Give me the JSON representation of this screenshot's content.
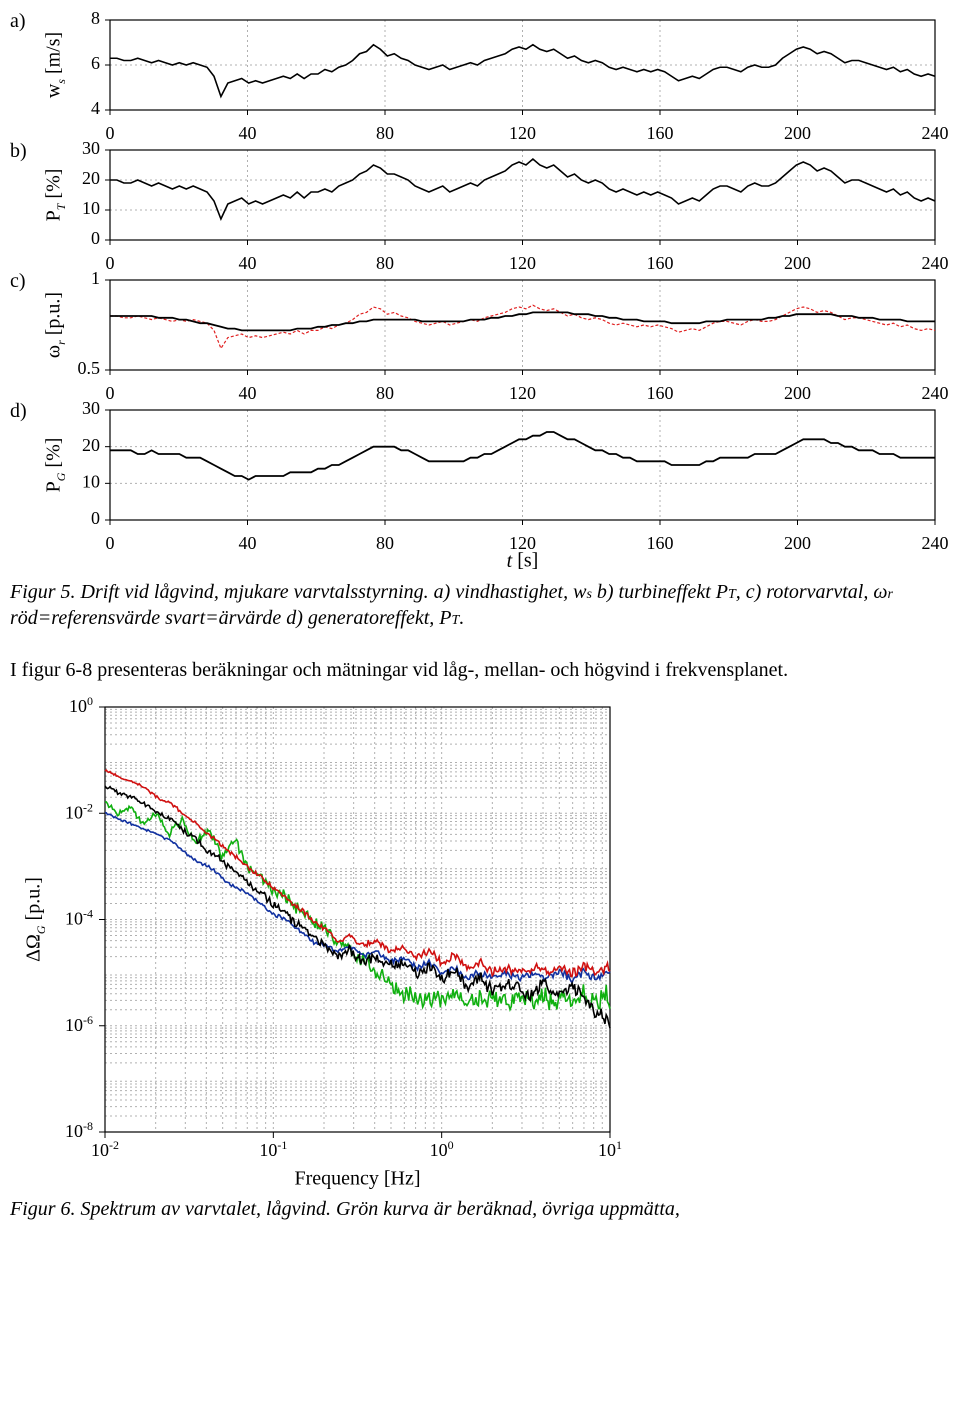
{
  "figure5": {
    "panels": [
      "a)",
      "b)",
      "c)",
      "d)"
    ],
    "x": {
      "label": "t [s]",
      "min": 0,
      "max": 240,
      "ticks": [
        0,
        40,
        80,
        120,
        160,
        200,
        240
      ],
      "fontsize": 18
    },
    "a": {
      "ylabel_html": "w<tspan font-style='italic' baseline-shift='sub' font-size='12'>s</tspan> [m/s]",
      "ymin": 4,
      "ymax": 8,
      "yticks": [
        4,
        6,
        8
      ],
      "line_color": "#000000",
      "line_width": 1.6,
      "grid_color": "#b0b0b0",
      "data": [
        6.3,
        6.3,
        6.2,
        6.2,
        6.3,
        6.2,
        6.1,
        6.2,
        6.1,
        6.0,
        6.1,
        6.0,
        6.1,
        6.0,
        5.9,
        5.5,
        4.6,
        5.2,
        5.3,
        5.4,
        5.2,
        5.3,
        5.2,
        5.3,
        5.4,
        5.5,
        5.4,
        5.6,
        5.4,
        5.6,
        5.6,
        5.8,
        5.7,
        5.9,
        6.0,
        6.2,
        6.5,
        6.6,
        6.9,
        6.7,
        6.4,
        6.5,
        6.3,
        6.2,
        6.0,
        5.9,
        5.8,
        5.9,
        6.0,
        5.8,
        5.9,
        6.0,
        6.1,
        6.0,
        6.2,
        6.3,
        6.4,
        6.5,
        6.7,
        6.8,
        6.7,
        6.9,
        6.7,
        6.6,
        6.7,
        6.5,
        6.3,
        6.4,
        6.2,
        6.1,
        6.2,
        6.1,
        5.9,
        5.8,
        5.9,
        5.8,
        5.7,
        5.8,
        5.7,
        5.8,
        5.7,
        5.5,
        5.3,
        5.4,
        5.5,
        5.4,
        5.6,
        5.8,
        5.9,
        5.9,
        5.8,
        5.7,
        5.9,
        6.0,
        5.9,
        5.9,
        6.0,
        6.3,
        6.5,
        6.7,
        6.8,
        6.7,
        6.5,
        6.6,
        6.5,
        6.3,
        6.1,
        6.2,
        6.2,
        6.1,
        6.0,
        5.9,
        5.8,
        5.9,
        5.7,
        5.8,
        5.6,
        5.5,
        5.6,
        5.5
      ]
    },
    "b": {
      "ylabel_html": "P<tspan font-style='italic' baseline-shift='sub' font-size='12'>T</tspan> [%]",
      "ymin": 0,
      "ymax": 30,
      "yticks": [
        0,
        10,
        20,
        30
      ],
      "line_color": "#000000",
      "line_width": 1.6,
      "grid_color": "#b0b0b0",
      "data": [
        20,
        20,
        19,
        19,
        20,
        19,
        18,
        19,
        18,
        17,
        18,
        17,
        18,
        17,
        16,
        13,
        7,
        12,
        13,
        14,
        12,
        13,
        12,
        13,
        14,
        15,
        14,
        16,
        14,
        16,
        16,
        17,
        16,
        18,
        19,
        20,
        22,
        23,
        25,
        24,
        22,
        22,
        21,
        20,
        18,
        17,
        16,
        17,
        18,
        16,
        17,
        18,
        19,
        18,
        20,
        21,
        22,
        23,
        25,
        26,
        25,
        27,
        25,
        24,
        25,
        23,
        21,
        22,
        20,
        19,
        20,
        19,
        17,
        16,
        17,
        16,
        15,
        16,
        15,
        16,
        15,
        14,
        12,
        13,
        14,
        13,
        15,
        17,
        18,
        18,
        17,
        16,
        18,
        19,
        18,
        18,
        19,
        21,
        23,
        25,
        26,
        25,
        23,
        24,
        23,
        21,
        19,
        20,
        20,
        19,
        18,
        17,
        16,
        17,
        15,
        16,
        14,
        13,
        14,
        13
      ]
    },
    "c": {
      "ylabel_html": "ω<tspan font-style='italic' baseline-shift='sub' font-size='12'>r</tspan> [p.u.]",
      "ymin": 0.5,
      "ymax": 1.0,
      "yticks": [
        0.5,
        1.0
      ],
      "ytick_labels": [
        "0.5",
        "1"
      ],
      "black": {
        "color": "#000000",
        "width": 1.8,
        "data": [
          0.8,
          0.8,
          0.8,
          0.8,
          0.8,
          0.8,
          0.8,
          0.79,
          0.79,
          0.79,
          0.78,
          0.78,
          0.77,
          0.76,
          0.76,
          0.75,
          0.74,
          0.73,
          0.73,
          0.72,
          0.72,
          0.72,
          0.72,
          0.72,
          0.72,
          0.72,
          0.72,
          0.73,
          0.73,
          0.73,
          0.74,
          0.74,
          0.75,
          0.75,
          0.76,
          0.76,
          0.77,
          0.77,
          0.78,
          0.78,
          0.78,
          0.78,
          0.78,
          0.78,
          0.78,
          0.77,
          0.77,
          0.77,
          0.77,
          0.77,
          0.77,
          0.77,
          0.78,
          0.78,
          0.78,
          0.79,
          0.79,
          0.8,
          0.8,
          0.81,
          0.81,
          0.82,
          0.82,
          0.82,
          0.82,
          0.82,
          0.82,
          0.81,
          0.81,
          0.81,
          0.8,
          0.8,
          0.79,
          0.79,
          0.78,
          0.78,
          0.78,
          0.77,
          0.77,
          0.77,
          0.77,
          0.76,
          0.76,
          0.76,
          0.76,
          0.76,
          0.77,
          0.77,
          0.77,
          0.78,
          0.78,
          0.78,
          0.78,
          0.78,
          0.78,
          0.79,
          0.79,
          0.8,
          0.8,
          0.81,
          0.81,
          0.81,
          0.81,
          0.81,
          0.81,
          0.8,
          0.8,
          0.8,
          0.79,
          0.79,
          0.79,
          0.78,
          0.78,
          0.78,
          0.78,
          0.77,
          0.77,
          0.77,
          0.77,
          0.77
        ]
      },
      "red": {
        "color": "#e02020",
        "width": 1.2,
        "dash": "3,2",
        "data": [
          0.8,
          0.8,
          0.79,
          0.79,
          0.8,
          0.79,
          0.78,
          0.79,
          0.78,
          0.77,
          0.78,
          0.77,
          0.78,
          0.77,
          0.76,
          0.72,
          0.62,
          0.68,
          0.69,
          0.7,
          0.68,
          0.69,
          0.68,
          0.69,
          0.7,
          0.71,
          0.7,
          0.72,
          0.7,
          0.72,
          0.72,
          0.74,
          0.73,
          0.75,
          0.76,
          0.78,
          0.81,
          0.82,
          0.85,
          0.84,
          0.81,
          0.82,
          0.8,
          0.79,
          0.77,
          0.76,
          0.75,
          0.76,
          0.77,
          0.75,
          0.76,
          0.77,
          0.78,
          0.77,
          0.79,
          0.8,
          0.81,
          0.82,
          0.84,
          0.85,
          0.84,
          0.86,
          0.84,
          0.83,
          0.84,
          0.82,
          0.8,
          0.81,
          0.79,
          0.78,
          0.79,
          0.78,
          0.76,
          0.75,
          0.76,
          0.75,
          0.74,
          0.75,
          0.74,
          0.75,
          0.74,
          0.73,
          0.71,
          0.72,
          0.73,
          0.72,
          0.74,
          0.76,
          0.77,
          0.77,
          0.76,
          0.75,
          0.77,
          0.78,
          0.77,
          0.77,
          0.78,
          0.8,
          0.82,
          0.84,
          0.85,
          0.84,
          0.82,
          0.83,
          0.82,
          0.8,
          0.78,
          0.79,
          0.79,
          0.78,
          0.77,
          0.76,
          0.75,
          0.76,
          0.74,
          0.75,
          0.73,
          0.72,
          0.73,
          0.72
        ]
      },
      "grid_color": "#b0b0b0"
    },
    "d": {
      "ylabel_html": "P<tspan font-style='italic' baseline-shift='sub' font-size='12'>G</tspan> [%]",
      "ymin": 0,
      "ymax": 30,
      "yticks": [
        0,
        10,
        20,
        30
      ],
      "line_color": "#000000",
      "line_width": 1.8,
      "grid_color": "#b0b0b0",
      "data": [
        19,
        19,
        19,
        19,
        18,
        18,
        19,
        18,
        18,
        18,
        18,
        17,
        17,
        17,
        16,
        15,
        14,
        13,
        12,
        12,
        11,
        12,
        12,
        12,
        12,
        12,
        13,
        13,
        13,
        13,
        14,
        14,
        15,
        15,
        16,
        17,
        18,
        19,
        20,
        20,
        20,
        20,
        19,
        19,
        18,
        17,
        16,
        16,
        16,
        16,
        16,
        16,
        17,
        17,
        18,
        18,
        19,
        20,
        21,
        22,
        22,
        23,
        23,
        24,
        24,
        23,
        22,
        22,
        21,
        20,
        19,
        19,
        18,
        18,
        17,
        17,
        16,
        16,
        16,
        16,
        16,
        15,
        15,
        15,
        15,
        15,
        16,
        16,
        17,
        17,
        17,
        17,
        17,
        18,
        18,
        18,
        18,
        19,
        20,
        21,
        22,
        22,
        22,
        22,
        21,
        21,
        20,
        20,
        19,
        19,
        19,
        18,
        18,
        18,
        17,
        17,
        17,
        17,
        17,
        17
      ]
    },
    "caption": "Figur 5. Drift vid lågvind, mjukare varvtalsstyrning. a) vindhastighet, w",
    "caption_part2": " b) turbineffekt P",
    "caption_part3": ", c) rotorvarvtal, ω",
    "caption_part4": " röd=referensvärde svart=ärvärde d) generatoreffekt, P",
    "caption_sub_s": "s",
    "caption_sub_T": "T",
    "caption_sub_r": "r",
    "caption_end": "."
  },
  "bodytext": "I figur 6-8 presenteras beräkningar och mätningar vid låg-, mellan- och högvind i frekvensplanet.",
  "figure6": {
    "xlabel": "Frequency [Hz]",
    "ylabel_html": "ΔΩ<tspan font-style='italic' baseline-shift='sub' font-size='12'>G</tspan> [p.u.]",
    "xmin": -2,
    "xmax": 1,
    "ymin": -8,
    "ymax": 0,
    "xticks": [
      -2,
      -1,
      0,
      1
    ],
    "xtick_labels": [
      "10^{-2}",
      "10^{-1}",
      "10^{0}",
      "10^{1}"
    ],
    "yticks": [
      -8,
      -6,
      -4,
      -2,
      0
    ],
    "ytick_labels": [
      "10^{-8}",
      "10^{-6}",
      "10^{-4}",
      "10^{-2}",
      "10^{0}"
    ],
    "grid_color": "#b0b0b0",
    "line_width": 1.6,
    "series": {
      "red": {
        "color": "#d01010",
        "logy": [
          -1.2,
          -1.3,
          -1.4,
          -1.5,
          -1.7,
          -1.8,
          -2.0,
          -2.2,
          -2.4,
          -2.6,
          -2.8,
          -3.0,
          -3.2,
          -3.4,
          -3.6,
          -3.8,
          -4.0,
          -4.2,
          -4.4,
          -4.3,
          -4.5,
          -4.4,
          -4.6,
          -4.5,
          -4.7,
          -4.6,
          -4.8,
          -4.7,
          -4.9,
          -4.8,
          -5.0,
          -4.9,
          -5.0,
          -4.9,
          -5.0,
          -4.9,
          -5.0,
          -4.9,
          -5.0,
          -4.9
        ],
        "noise": 0.15
      },
      "black": {
        "color": "#000000",
        "logy": [
          -1.5,
          -1.6,
          -1.7,
          -1.8,
          -2.0,
          -2.1,
          -2.3,
          -2.5,
          -2.7,
          -2.9,
          -3.1,
          -3.3,
          -3.5,
          -3.7,
          -3.9,
          -4.1,
          -4.3,
          -4.5,
          -4.7,
          -4.6,
          -4.8,
          -4.7,
          -4.9,
          -4.8,
          -5.0,
          -4.9,
          -5.1,
          -5.0,
          -5.2,
          -5.1,
          -5.3,
          -5.2,
          -5.3,
          -5.4,
          -5.2,
          -5.4,
          -5.2,
          -5.5,
          -5.7,
          -6.0
        ],
        "noise": 0.25
      },
      "blue": {
        "color": "#1030a0",
        "logy": [
          -2.0,
          -2.1,
          -2.2,
          -2.3,
          -2.4,
          -2.5,
          -2.7,
          -2.9,
          -3.0,
          -3.2,
          -3.4,
          -3.5,
          -3.7,
          -3.9,
          -4.0,
          -4.2,
          -4.4,
          -4.5,
          -4.6,
          -4.5,
          -4.7,
          -4.6,
          -4.8,
          -4.7,
          -4.9,
          -4.8,
          -5.0,
          -4.9,
          -5.1,
          -5.0,
          -5.1,
          -5.0,
          -5.1,
          -5.0,
          -5.1,
          -5.0,
          -5.1,
          -5.0,
          -5.1,
          -5.0
        ],
        "noise": 0.12
      },
      "green": {
        "color": "#10b010",
        "logy": [
          -1.8,
          -2.0,
          -1.9,
          -2.2,
          -2.0,
          -2.4,
          -2.1,
          -2.6,
          -2.3,
          -2.8,
          -2.5,
          -3.0,
          -3.2,
          -3.4,
          -3.6,
          -3.8,
          -4.0,
          -4.2,
          -4.4,
          -4.6,
          -4.8,
          -5.0,
          -5.2,
          -5.4,
          -5.5,
          -5.5,
          -5.5,
          -5.5,
          -5.5,
          -5.5,
          -5.5,
          -5.5,
          -5.5,
          -5.5,
          -5.5,
          -5.5,
          -5.5,
          -5.5,
          -5.5,
          -5.5
        ],
        "noise": 0.35
      }
    },
    "caption": "Figur 6. Spektrum av varvtalet, lågvind. Grön kurva är beräknad, övriga uppmätta,"
  }
}
